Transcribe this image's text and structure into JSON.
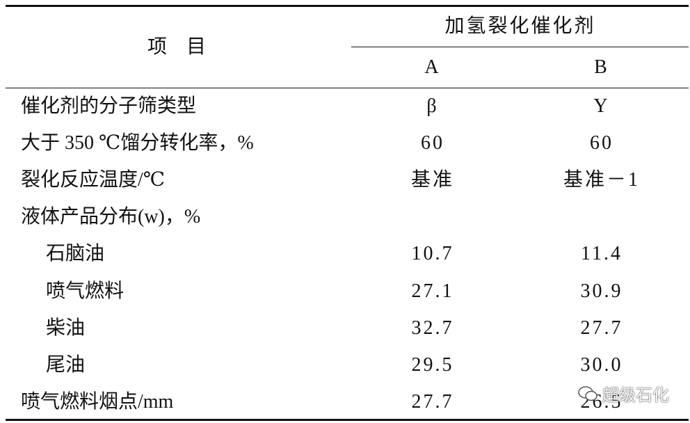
{
  "header": {
    "item": "项　目",
    "group": "加氢裂化催化剂",
    "columns": [
      "A",
      "B"
    ]
  },
  "rows": [
    {
      "label": "催化剂的分子筛类型",
      "values": [
        "β",
        "Y"
      ]
    },
    {
      "label": "大于 350 ℃馏分转化率，%",
      "values": [
        "60",
        "60"
      ]
    },
    {
      "label": "裂化反应温度/℃",
      "values": [
        "基准",
        "基准－1"
      ]
    },
    {
      "label": "液体产品分布(w)，%",
      "rows": [
        {
          "label": "石脑油",
          "values": [
            "10.7",
            "11.4"
          ]
        },
        {
          "label": "喷气燃料",
          "values": [
            "27.1",
            "30.9"
          ]
        },
        {
          "label": "柴油",
          "values": [
            "32.7",
            "27.7"
          ]
        },
        {
          "label": "尾油",
          "values": [
            "29.5",
            "30.0"
          ]
        }
      ]
    },
    {
      "label": "喷气燃料烟点/mm",
      "values": [
        "27.7",
        "26.5"
      ]
    }
  ],
  "watermark": "超级石化"
}
